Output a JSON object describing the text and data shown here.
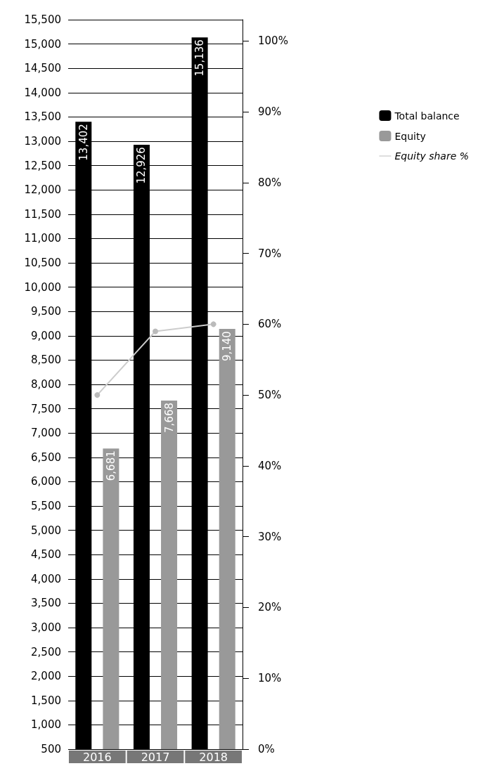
{
  "chart_data": {
    "type": "bar",
    "categories": [
      "2016",
      "2017",
      "2018"
    ],
    "series": [
      {
        "name": "Total balance",
        "color": "#000000",
        "values": [
          13402,
          12926,
          15136
        ],
        "value_labels": [
          "13,402",
          "12,926",
          "15,136"
        ]
      },
      {
        "name": "Equity",
        "color": "#999999",
        "values": [
          6681,
          7668,
          9140
        ],
        "value_labels": [
          "6,681",
          "7,668",
          "9,140"
        ]
      },
      {
        "name": "Equity share %",
        "type": "line",
        "axis": "y2",
        "color": "#cccccc",
        "values": [
          50,
          59,
          60
        ]
      }
    ],
    "ylim": [
      500,
      15500
    ],
    "yticks": [
      500,
      {
        "value": 1000,
        "label": "1,000"
      },
      {
        "value": 1500,
        "label": "1,500"
      },
      {
        "value": 2000,
        "label": "2,000"
      },
      {
        "value": 2500,
        "label": "2,500"
      },
      {
        "value": 3000,
        "label": "3,000"
      },
      {
        "value": 3500,
        "label": "3,500"
      },
      {
        "value": 4000,
        "label": "4,000"
      },
      {
        "value": 4500,
        "label": "4,500"
      },
      {
        "value": 5000,
        "label": "5,000"
      },
      {
        "value": 5500,
        "label": "5,500"
      },
      {
        "value": 6000,
        "label": "6,000"
      },
      {
        "value": 6500,
        "label": "6,500"
      },
      {
        "value": 7000,
        "label": "7,000"
      },
      {
        "value": 7500,
        "label": "7,500"
      },
      {
        "value": 8000,
        "label": "8,000"
      },
      {
        "value": 8500,
        "label": "8,500"
      },
      {
        "value": 9000,
        "label": "9,000"
      },
      {
        "value": 9500,
        "label": "9,500"
      },
      {
        "value": 10000,
        "label": "10,000"
      },
      {
        "value": 10500,
        "label": "10,500"
      },
      {
        "value": 11000,
        "label": "11,000"
      },
      {
        "value": 11500,
        "label": "11,500"
      },
      {
        "value": 12000,
        "label": "12,000"
      },
      {
        "value": 12500,
        "label": "12,500"
      },
      {
        "value": 13000,
        "label": "13,000"
      },
      {
        "value": 13500,
        "label": "13,500"
      },
      {
        "value": 14000,
        "label": "14,000"
      },
      {
        "value": 14500,
        "label": "14,500"
      },
      {
        "value": 15000,
        "label": "15,000"
      },
      {
        "value": 15500,
        "label": "15,500"
      }
    ],
    "y2lim": [
      0,
      103
    ],
    "y2ticks": [
      {
        "value": 0,
        "label": "0%"
      },
      {
        "value": 10,
        "label": "10%"
      },
      {
        "value": 20,
        "label": "20%"
      },
      {
        "value": 30,
        "label": "30%"
      },
      {
        "value": 40,
        "label": "40%"
      },
      {
        "value": 50,
        "label": "50%"
      },
      {
        "value": 60,
        "label": "60%"
      },
      {
        "value": 70,
        "label": "70%"
      },
      {
        "value": 80,
        "label": "80%"
      },
      {
        "value": 90,
        "label": "90%"
      },
      {
        "value": 100,
        "label": "100%"
      }
    ],
    "grid": "y",
    "legend": "right",
    "marker": "circle"
  }
}
